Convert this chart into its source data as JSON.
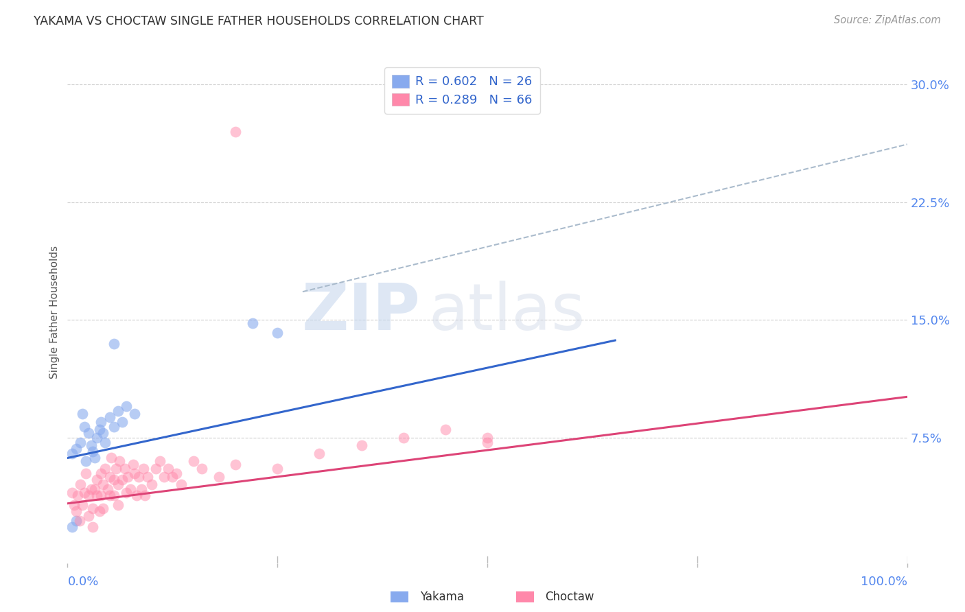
{
  "title": "YAKAMA VS CHOCTAW SINGLE FATHER HOUSEHOLDS CORRELATION CHART",
  "source": "Source: ZipAtlas.com",
  "ylabel": "Single Father Households",
  "ytick_labels": [
    "",
    "7.5%",
    "15.0%",
    "22.5%",
    "30.0%"
  ],
  "ytick_values": [
    0.0,
    0.075,
    0.15,
    0.225,
    0.3
  ],
  "xlim": [
    0.0,
    1.0
  ],
  "ylim": [
    -0.005,
    0.315
  ],
  "background_color": "#ffffff",
  "watermark_zip": "ZIP",
  "watermark_atlas": "atlas",
  "legend_r_yakama": "R = 0.602",
  "legend_n_yakama": "N = 26",
  "legend_r_choctaw": "R = 0.289",
  "legend_n_choctaw": "N = 66",
  "yakama_color": "#88aaee",
  "choctaw_color": "#ff88aa",
  "regression_yakama_color": "#3366cc",
  "regression_choctaw_color": "#dd4477",
  "dashed_line_color": "#aabbcc",
  "yakama_scatter": [
    [
      0.005,
      0.065
    ],
    [
      0.01,
      0.068
    ],
    [
      0.015,
      0.072
    ],
    [
      0.018,
      0.09
    ],
    [
      0.02,
      0.082
    ],
    [
      0.022,
      0.06
    ],
    [
      0.025,
      0.078
    ],
    [
      0.028,
      0.07
    ],
    [
      0.03,
      0.066
    ],
    [
      0.032,
      0.062
    ],
    [
      0.035,
      0.075
    ],
    [
      0.038,
      0.08
    ],
    [
      0.04,
      0.085
    ],
    [
      0.042,
      0.078
    ],
    [
      0.045,
      0.072
    ],
    [
      0.05,
      0.088
    ],
    [
      0.055,
      0.082
    ],
    [
      0.06,
      0.092
    ],
    [
      0.065,
      0.085
    ],
    [
      0.07,
      0.095
    ],
    [
      0.08,
      0.09
    ],
    [
      0.005,
      0.018
    ],
    [
      0.01,
      0.022
    ],
    [
      0.22,
      0.148
    ],
    [
      0.25,
      0.142
    ],
    [
      0.055,
      0.135
    ]
  ],
  "choctaw_scatter": [
    [
      0.005,
      0.04
    ],
    [
      0.008,
      0.032
    ],
    [
      0.01,
      0.028
    ],
    [
      0.012,
      0.038
    ],
    [
      0.014,
      0.022
    ],
    [
      0.015,
      0.045
    ],
    [
      0.018,
      0.032
    ],
    [
      0.02,
      0.04
    ],
    [
      0.022,
      0.052
    ],
    [
      0.025,
      0.038
    ],
    [
      0.025,
      0.025
    ],
    [
      0.028,
      0.042
    ],
    [
      0.03,
      0.018
    ],
    [
      0.03,
      0.03
    ],
    [
      0.032,
      0.042
    ],
    [
      0.035,
      0.048
    ],
    [
      0.035,
      0.038
    ],
    [
      0.038,
      0.028
    ],
    [
      0.04,
      0.038
    ],
    [
      0.04,
      0.052
    ],
    [
      0.042,
      0.045
    ],
    [
      0.042,
      0.03
    ],
    [
      0.045,
      0.055
    ],
    [
      0.048,
      0.042
    ],
    [
      0.05,
      0.038
    ],
    [
      0.05,
      0.05
    ],
    [
      0.052,
      0.062
    ],
    [
      0.055,
      0.048
    ],
    [
      0.055,
      0.038
    ],
    [
      0.058,
      0.055
    ],
    [
      0.06,
      0.045
    ],
    [
      0.06,
      0.032
    ],
    [
      0.062,
      0.06
    ],
    [
      0.065,
      0.048
    ],
    [
      0.068,
      0.055
    ],
    [
      0.07,
      0.04
    ],
    [
      0.072,
      0.05
    ],
    [
      0.075,
      0.042
    ],
    [
      0.078,
      0.058
    ],
    [
      0.08,
      0.052
    ],
    [
      0.082,
      0.038
    ],
    [
      0.085,
      0.05
    ],
    [
      0.088,
      0.042
    ],
    [
      0.09,
      0.055
    ],
    [
      0.092,
      0.038
    ],
    [
      0.095,
      0.05
    ],
    [
      0.1,
      0.045
    ],
    [
      0.105,
      0.055
    ],
    [
      0.11,
      0.06
    ],
    [
      0.115,
      0.05
    ],
    [
      0.12,
      0.055
    ],
    [
      0.125,
      0.05
    ],
    [
      0.13,
      0.052
    ],
    [
      0.135,
      0.045
    ],
    [
      0.15,
      0.06
    ],
    [
      0.16,
      0.055
    ],
    [
      0.18,
      0.05
    ],
    [
      0.2,
      0.058
    ],
    [
      0.25,
      0.055
    ],
    [
      0.3,
      0.065
    ],
    [
      0.35,
      0.07
    ],
    [
      0.4,
      0.075
    ],
    [
      0.45,
      0.08
    ],
    [
      0.5,
      0.075
    ],
    [
      0.2,
      0.27
    ],
    [
      0.5,
      0.072
    ]
  ],
  "dashed_line_x": [
    0.3,
    1.0
  ],
  "dashed_line_y": [
    0.175,
    0.265
  ]
}
